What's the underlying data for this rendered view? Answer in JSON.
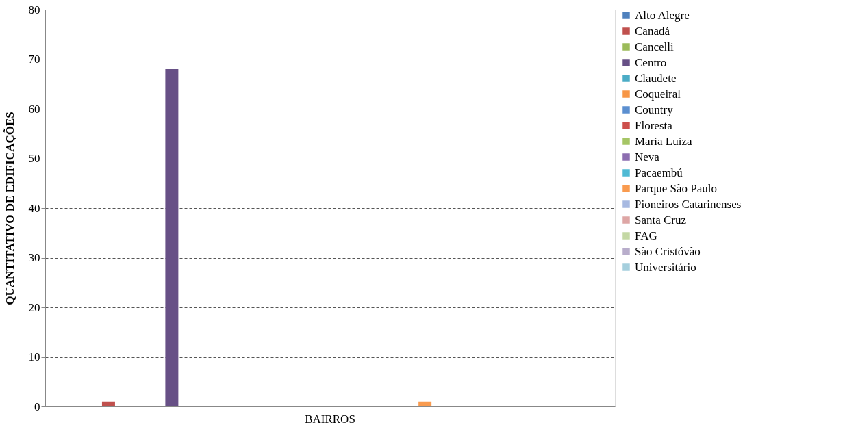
{
  "chart_data": {
    "type": "bar",
    "ylabel": "QUANTITATIVO DE EDIFICAÇÕES",
    "categories": [
      "BAIRROS"
    ],
    "series": [
      {
        "name": "Alto Alegre",
        "color": "#4f81bd",
        "values": [
          0
        ]
      },
      {
        "name": "Canadá",
        "color": "#c0504d",
        "values": [
          1
        ]
      },
      {
        "name": "Cancelli",
        "color": "#9bbb59",
        "values": [
          0
        ]
      },
      {
        "name": "Centro",
        "color": "#675086",
        "values": [
          68
        ]
      },
      {
        "name": "Claudete",
        "color": "#4bacc6",
        "values": [
          0
        ]
      },
      {
        "name": "Coqueiral",
        "color": "#f79646",
        "values": [
          0
        ]
      },
      {
        "name": "Country",
        "color": "#5b8fd0",
        "values": [
          0
        ]
      },
      {
        "name": "Floresta",
        "color": "#cd4f4c",
        "values": [
          0
        ]
      },
      {
        "name": "Maria Luiza",
        "color": "#a5c565",
        "values": [
          0
        ]
      },
      {
        "name": "Neva",
        "color": "#8c6db0",
        "values": [
          0
        ]
      },
      {
        "name": "Pacaembú",
        "color": "#4fbad4",
        "values": [
          0
        ]
      },
      {
        "name": "Parque São Paulo",
        "color": "#f99b4f",
        "values": [
          1
        ]
      },
      {
        "name": "Pioneiros Catarinenses",
        "color": "#a7b9e1",
        "values": [
          0
        ]
      },
      {
        "name": "Santa Cruz",
        "color": "#dea6a5",
        "values": [
          0
        ]
      },
      {
        "name": "FAG",
        "color": "#c4d8a4",
        "values": [
          0
        ]
      },
      {
        "name": "São Cristóvão",
        "color": "#b8adcb",
        "values": [
          0
        ]
      },
      {
        "name": "Universitário",
        "color": "#a5cfdd",
        "values": [
          0
        ]
      }
    ],
    "ylim": [
      0,
      80
    ],
    "yticks": [
      0,
      10,
      20,
      30,
      40,
      50,
      60,
      70,
      80
    ],
    "grid": "y",
    "legend": "right"
  }
}
